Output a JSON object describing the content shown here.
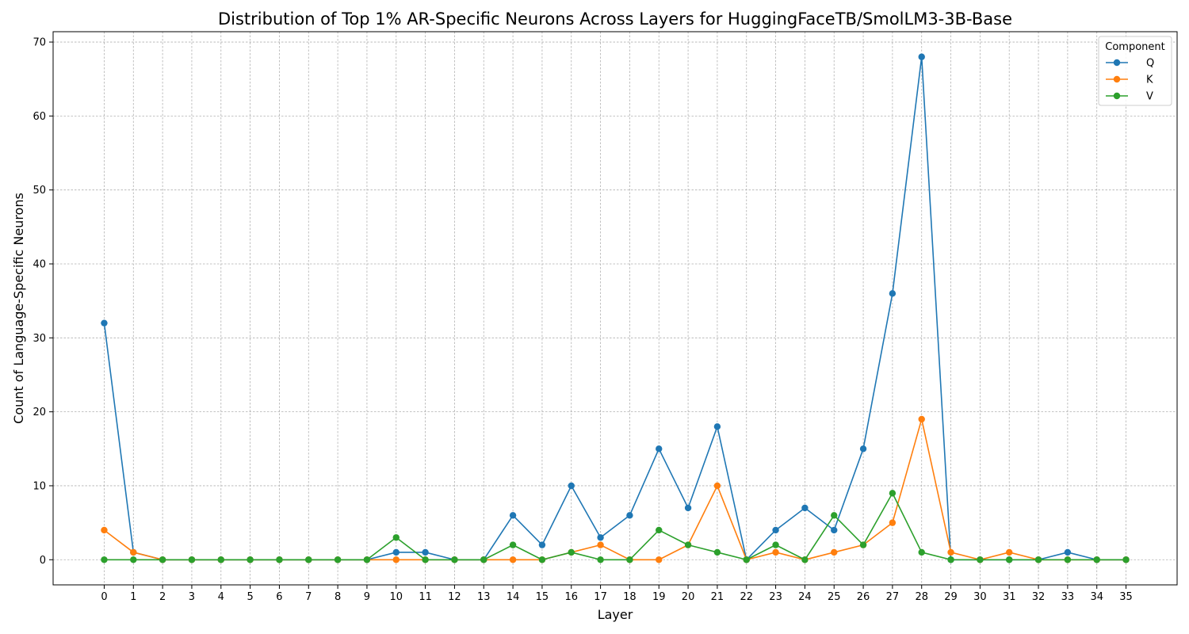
{
  "chart_data": {
    "type": "line",
    "title": "Distribution of Top 1% AR-Specific Neurons Across Layers for HuggingFaceTB/SmolLM3-3B-Base",
    "xlabel": "Layer",
    "ylabel": "Count of Language-Specific Neurons",
    "x": [
      0,
      1,
      2,
      3,
      4,
      5,
      6,
      7,
      8,
      9,
      10,
      11,
      12,
      13,
      14,
      15,
      16,
      17,
      18,
      19,
      20,
      21,
      22,
      23,
      24,
      25,
      26,
      27,
      28,
      29,
      30,
      31,
      32,
      33,
      34,
      35
    ],
    "xlim": [
      -1.75,
      36.75
    ],
    "ylim": [
      -3.4,
      71.4
    ],
    "yticks": [
      0,
      10,
      20,
      30,
      40,
      50,
      60,
      70
    ],
    "grid": true,
    "legend": {
      "title": "Component",
      "placement": "top-right"
    },
    "series": [
      {
        "name": "Q",
        "color": "#1f77b4",
        "values": [
          32,
          1,
          0,
          0,
          0,
          0,
          0,
          0,
          0,
          0,
          1,
          1,
          0,
          0,
          6,
          2,
          10,
          3,
          6,
          15,
          7,
          18,
          0,
          4,
          7,
          4,
          15,
          36,
          68,
          0,
          0,
          0,
          0,
          1,
          0,
          0
        ]
      },
      {
        "name": "K",
        "color": "#ff7f0e",
        "values": [
          4,
          1,
          0,
          0,
          0,
          0,
          0,
          0,
          0,
          0,
          0,
          0,
          0,
          0,
          0,
          0,
          1,
          2,
          0,
          0,
          2,
          10,
          0,
          1,
          0,
          1,
          2,
          5,
          19,
          1,
          0,
          1,
          0,
          0,
          0,
          0
        ]
      },
      {
        "name": "V",
        "color": "#2ca02c",
        "values": [
          0,
          0,
          0,
          0,
          0,
          0,
          0,
          0,
          0,
          0,
          3,
          0,
          0,
          0,
          2,
          0,
          1,
          0,
          0,
          4,
          2,
          1,
          0,
          2,
          0,
          6,
          2,
          9,
          1,
          0,
          0,
          0,
          0,
          0,
          0,
          0
        ]
      }
    ]
  }
}
